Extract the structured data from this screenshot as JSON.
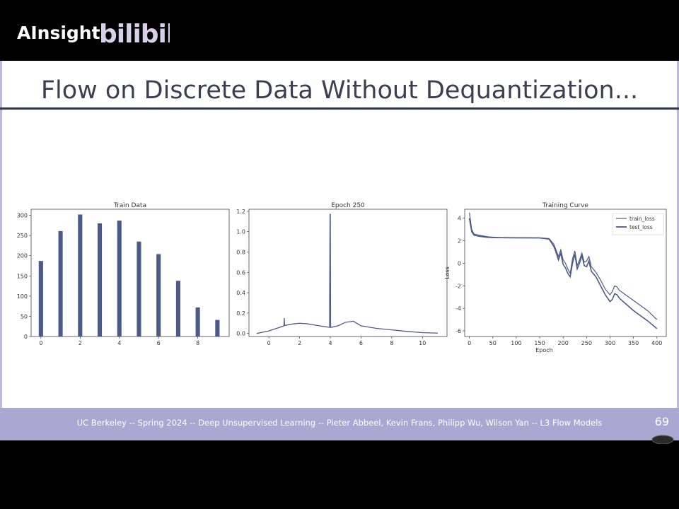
{
  "header": {
    "brand_text": "AInsight",
    "logo_text": "bilibili",
    "logo_color": "#d8cfe8"
  },
  "slide": {
    "title": "Flow on Discrete Data Without Dequantization...",
    "footer": "UC Berkeley -- Spring 2024 -- Deep Unsupervised Learning -- Pieter Abbeel, Kevin Frans, Philipp Wu, Wilson Yan -- L3 Flow Models",
    "page_number": "69",
    "accent_color": "#a8a8d2",
    "plot_color": "#4c5a88"
  },
  "chart_data": [
    {
      "type": "bar",
      "title": "Train Data",
      "x": [
        0,
        1,
        2,
        3,
        4,
        5,
        6,
        7,
        8,
        9
      ],
      "values": [
        187,
        261,
        302,
        280,
        287,
        235,
        204,
        138,
        72,
        41
      ],
      "xticks": [
        0,
        2,
        4,
        6,
        8
      ],
      "yticks": [
        0,
        50,
        100,
        150,
        200,
        250,
        300
      ],
      "xlim": [
        -0.5,
        9.6
      ],
      "ylim": [
        0,
        315
      ]
    },
    {
      "type": "line",
      "title": "Epoch 250",
      "x": [
        -0.8,
        0,
        0.5,
        0.98,
        1.0,
        1.02,
        1.5,
        2,
        2.5,
        3,
        3.5,
        3.95,
        3.98,
        4.0,
        4.02,
        4.05,
        4.5,
        5,
        5.5,
        6,
        7,
        8,
        9,
        10,
        11
      ],
      "y": [
        0.0,
        0.025,
        0.05,
        0.075,
        0.15,
        0.078,
        0.092,
        0.1,
        0.095,
        0.082,
        0.07,
        0.06,
        1.17,
        1.17,
        0.06,
        0.06,
        0.075,
        0.11,
        0.12,
        0.075,
        0.05,
        0.035,
        0.02,
        0.008,
        0.003
      ],
      "xticks": [
        0,
        2,
        4,
        6,
        8,
        10
      ],
      "yticks": [
        0.0,
        0.2,
        0.4,
        0.6,
        0.8,
        1.0,
        1.2
      ],
      "xlim": [
        -1.3,
        11.6
      ],
      "ylim": [
        -0.03,
        1.22
      ]
    },
    {
      "type": "line",
      "title": "Training Curve",
      "xlabel": "Epoch",
      "ylabel": "Loss",
      "xticks": [
        0,
        50,
        100,
        150,
        200,
        250,
        300,
        350,
        400
      ],
      "yticks": [
        -6,
        -4,
        -2,
        0,
        2,
        4
      ],
      "xlim": [
        -10,
        420
      ],
      "ylim": [
        -6.5,
        4.8
      ],
      "legend_position": "top-right",
      "series": [
        {
          "name": "train_loss",
          "x": [
            0,
            5,
            10,
            20,
            40,
            60,
            100,
            150,
            170,
            180,
            183,
            190,
            195,
            200,
            205,
            210,
            215,
            220,
            225,
            230,
            235,
            240,
            245,
            250,
            255,
            260,
            270,
            280,
            290,
            300,
            305,
            310,
            315,
            320,
            350,
            380,
            400
          ],
          "y": [
            4.5,
            3.0,
            2.6,
            2.5,
            2.35,
            2.3,
            2.28,
            2.27,
            2.2,
            1.7,
            1.4,
            0.6,
            1.2,
            0.3,
            0.0,
            -0.5,
            -0.9,
            0.4,
            1.1,
            -0.2,
            0.3,
            0.9,
            0.1,
            0.2,
            0.6,
            -0.3,
            -0.8,
            -1.5,
            -2.3,
            -2.8,
            -2.5,
            -2.0,
            -2.1,
            -2.4,
            -3.3,
            -4.2,
            -5.0
          ]
        },
        {
          "name": "test_loss",
          "x": [
            0,
            5,
            10,
            20,
            40,
            60,
            100,
            150,
            170,
            180,
            183,
            190,
            195,
            200,
            205,
            210,
            215,
            220,
            225,
            230,
            235,
            240,
            245,
            250,
            255,
            260,
            270,
            280,
            290,
            300,
            305,
            310,
            315,
            320,
            350,
            380,
            400
          ],
          "y": [
            4.0,
            2.8,
            2.5,
            2.4,
            2.3,
            2.28,
            2.26,
            2.25,
            2.15,
            1.5,
            1.2,
            0.3,
            0.9,
            -0.1,
            -0.4,
            -0.9,
            -1.2,
            0.0,
            0.8,
            -0.5,
            0.0,
            0.7,
            -0.2,
            -0.3,
            0.2,
            -0.7,
            -1.2,
            -2.0,
            -2.8,
            -3.4,
            -3.2,
            -2.7,
            -2.8,
            -3.1,
            -4.2,
            -5.1,
            -5.8
          ]
        }
      ]
    }
  ]
}
